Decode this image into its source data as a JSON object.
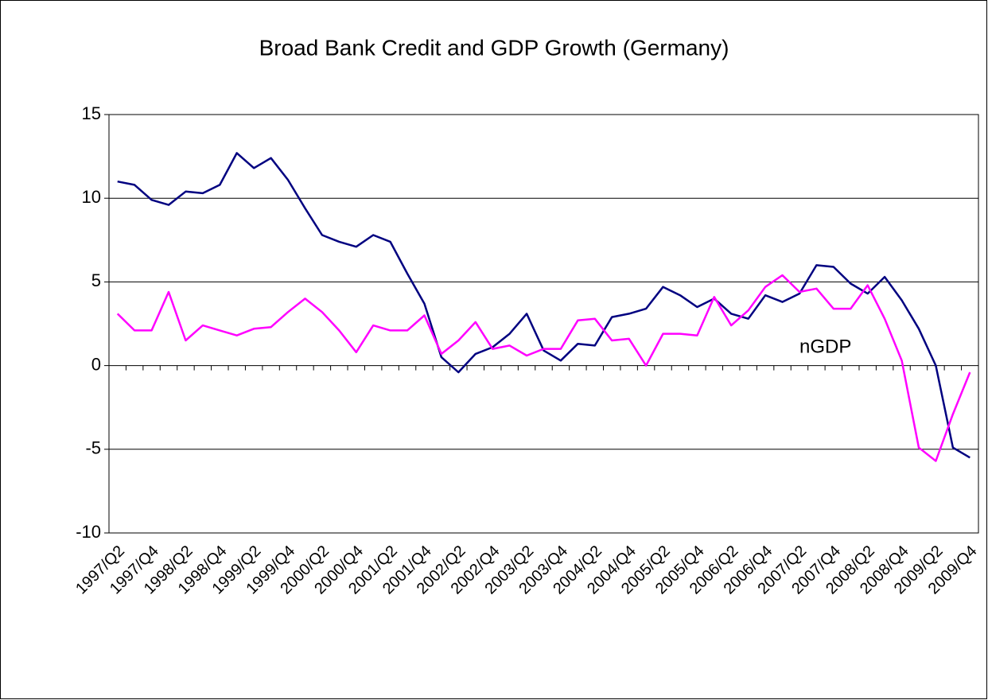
{
  "chart_data": {
    "type": "line",
    "title": "Broad Bank Credit and GDP Growth (Germany)",
    "categories": [
      "1997/Q2",
      null,
      "1997/Q4",
      null,
      "1998/Q2",
      null,
      "1998/Q4",
      null,
      "1999/Q2",
      null,
      "1999/Q4",
      null,
      "2000/Q2",
      null,
      "2000/Q4",
      null,
      "2001/Q2",
      null,
      "2001/Q4",
      null,
      "2002/Q2",
      null,
      "2002/Q4",
      null,
      "2003/Q2",
      null,
      "2003/Q4",
      null,
      "2004/Q2",
      null,
      "2004/Q4",
      null,
      "2005/Q2",
      null,
      "2005/Q4",
      null,
      "2006/Q2",
      null,
      "2006/Q4",
      null,
      "2007/Q2",
      null,
      "2007/Q4",
      null,
      "2008/Q2",
      null,
      "2008/Q4",
      null,
      "2009/Q2",
      null,
      "2009/Q4"
    ],
    "series": [
      {
        "color": "#000080",
        "values": [
          11.0,
          10.8,
          9.9,
          9.6,
          10.4,
          10.3,
          10.8,
          12.7,
          11.8,
          12.4,
          11.1,
          9.4,
          7.8,
          7.4,
          7.1,
          7.8,
          7.4,
          5.5,
          3.7,
          0.5,
          -0.4,
          0.7,
          1.1,
          1.9,
          3.1,
          0.9,
          0.3,
          1.3,
          1.2,
          2.9,
          3.1,
          3.4,
          4.7,
          4.2,
          3.5,
          4.0,
          3.1,
          2.8,
          4.2,
          3.8,
          4.3,
          6.0,
          5.9,
          4.9,
          4.3,
          5.3,
          3.9,
          2.2,
          0.0,
          -4.9,
          -5.5
        ]
      },
      {
        "color": "#ff00ff",
        "values": [
          3.1,
          2.1,
          2.1,
          4.4,
          1.5,
          2.4,
          2.1,
          1.8,
          2.2,
          2.3,
          3.2,
          4.0,
          3.2,
          2.1,
          0.8,
          2.4,
          2.1,
          2.1,
          3.0,
          0.7,
          1.5,
          2.6,
          1.0,
          1.2,
          0.6,
          1.0,
          1.0,
          2.7,
          2.8,
          1.5,
          1.6,
          0.0,
          1.9,
          1.9,
          1.8,
          4.1,
          2.4,
          3.3,
          4.7,
          5.4,
          4.4,
          4.6,
          3.4,
          3.4,
          4.8,
          2.8,
          0.3,
          -4.9,
          -5.7,
          -2.9,
          -0.4
        ]
      }
    ],
    "annotations": [
      "nGDP"
    ],
    "ylim": [
      -10,
      15
    ],
    "yticks": [
      -10,
      -5,
      0,
      5,
      10,
      15
    ],
    "grid": true
  }
}
